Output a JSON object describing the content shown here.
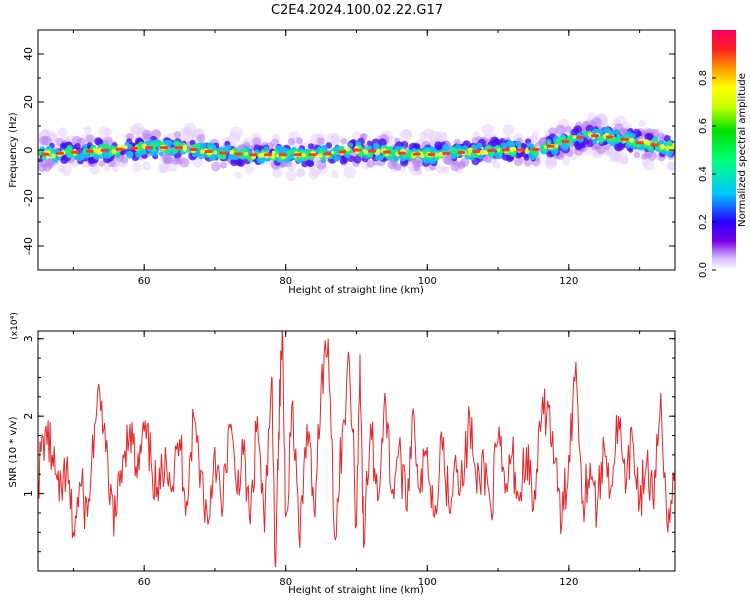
{
  "title": "C2E4.2024.100.02.22.G17",
  "chart_data": [
    {
      "type": "heatmap",
      "xlabel": "Height of straight line (km)",
      "ylabel": "Frequency (Hz)",
      "xlim": [
        45,
        135
      ],
      "ylim": [
        -50,
        50
      ],
      "xticks": [
        60,
        80,
        100,
        120
      ],
      "yticks": [
        40,
        20,
        0,
        -20,
        -40
      ],
      "colorbar": {
        "label": "Normalized spectral amplitude",
        "range": [
          0,
          1
        ],
        "ticks": [
          0.0,
          0.2,
          0.4,
          0.6,
          0.8
        ]
      },
      "ridge": {
        "x": [
          45,
          50,
          55,
          60,
          65,
          70,
          75,
          80,
          85,
          90,
          95,
          100,
          105,
          110,
          115,
          118,
          121,
          124,
          127,
          130,
          135
        ],
        "frequency": [
          -2,
          -1,
          0,
          1,
          1,
          -1,
          -2,
          -2,
          -2,
          0,
          -1,
          -2,
          -1,
          0,
          0,
          2,
          5,
          6,
          5,
          3,
          1
        ]
      }
    },
    {
      "type": "line",
      "xlabel": "Height of straight line (km)",
      "ylabel": "SNR (10 * v/v)",
      "y_multiplier": "(x10⁴)",
      "xlim": [
        45,
        135
      ],
      "ylim": [
        0,
        3.1
      ],
      "xticks": [
        60,
        80,
        100,
        120
      ],
      "yticks": [
        1,
        2,
        3
      ],
      "color": "#e8262a",
      "series_points": [
        [
          45,
          1.2
        ],
        [
          46,
          1.8
        ],
        [
          47,
          1.5
        ],
        [
          48,
          0.9
        ],
        [
          49,
          1.3
        ],
        [
          50,
          0.5
        ],
        [
          51,
          1.1
        ],
        [
          52,
          0.7
        ],
        [
          53,
          1.9
        ],
        [
          54,
          2.2
        ],
        [
          55,
          1.0
        ],
        [
          56,
          0.7
        ],
        [
          57,
          1.5
        ],
        [
          58,
          1.9
        ],
        [
          59,
          1.2
        ],
        [
          60,
          1.8
        ],
        [
          61,
          1.4
        ],
        [
          62,
          0.9
        ],
        [
          63,
          1.6
        ],
        [
          64,
          1.1
        ],
        [
          65,
          1.7
        ],
        [
          66,
          0.9
        ],
        [
          67,
          2.0
        ],
        [
          68,
          1.3
        ],
        [
          69,
          0.6
        ],
        [
          70,
          1.6
        ],
        [
          71,
          0.7
        ],
        [
          72,
          1.9
        ],
        [
          73,
          1.1
        ],
        [
          74,
          1.5
        ],
        [
          75,
          0.6
        ],
        [
          76,
          2.0
        ],
        [
          77,
          0.5
        ],
        [
          78,
          2.5
        ],
        [
          78.5,
          0.1
        ],
        [
          79,
          1.8
        ],
        [
          79.5,
          3.1
        ],
        [
          80,
          0.7
        ],
        [
          81,
          2.2
        ],
        [
          82,
          0.3
        ],
        [
          83,
          1.9
        ],
        [
          84,
          0.8
        ],
        [
          85,
          2.4
        ],
        [
          86,
          3.0
        ],
        [
          87,
          0.4
        ],
        [
          88,
          1.8
        ],
        [
          89,
          2.7
        ],
        [
          90,
          0.6
        ],
        [
          90.5,
          2.8
        ],
        [
          91,
          0.3
        ],
        [
          92,
          1.9
        ],
        [
          93,
          0.9
        ],
        [
          94,
          2.3
        ],
        [
          95,
          1.0
        ],
        [
          96,
          1.6
        ],
        [
          97,
          0.8
        ],
        [
          98,
          2.1
        ],
        [
          99,
          1.0
        ],
        [
          100,
          1.6
        ],
        [
          101,
          0.7
        ],
        [
          102,
          1.8
        ],
        [
          103,
          0.9
        ],
        [
          104,
          1.5
        ],
        [
          105,
          1.1
        ],
        [
          106,
          2.0
        ],
        [
          107,
          1.0
        ],
        [
          108,
          1.4
        ],
        [
          109,
          0.8
        ],
        [
          110,
          1.7
        ],
        [
          111,
          1.0
        ],
        [
          112,
          1.5
        ],
        [
          113,
          0.9
        ],
        [
          114,
          1.6
        ],
        [
          115,
          0.8
        ],
        [
          116,
          1.8
        ],
        [
          117,
          2.2
        ],
        [
          118,
          1.4
        ],
        [
          119,
          0.6
        ],
        [
          120,
          1.5
        ],
        [
          121,
          2.7
        ],
        [
          122,
          0.9
        ],
        [
          123,
          1.4
        ],
        [
          124,
          0.8
        ],
        [
          125,
          1.6
        ],
        [
          126,
          1.1
        ],
        [
          127,
          2.0
        ],
        [
          128,
          1.0
        ],
        [
          129,
          1.7
        ],
        [
          130,
          0.9
        ],
        [
          131,
          1.4
        ],
        [
          132,
          0.8
        ],
        [
          133,
          2.3
        ],
        [
          134,
          0.5
        ],
        [
          135,
          1.3
        ]
      ]
    }
  ]
}
